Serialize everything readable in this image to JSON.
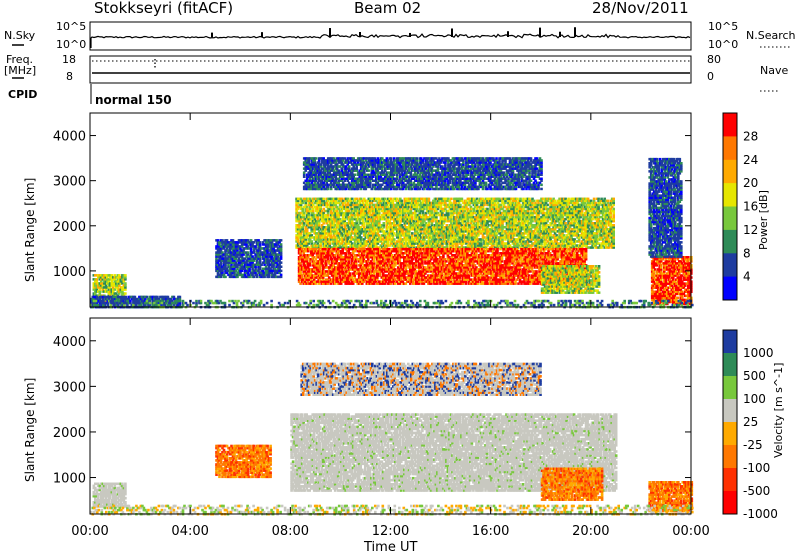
{
  "header": {
    "radar": "Stokkseyri (fitACF)",
    "beam": "Beam 02",
    "date": "28/Nov/2011"
  },
  "top_panel": {
    "nsky_label": "N.Sky",
    "nsky_ticks": [
      "10^5",
      "10^0"
    ],
    "nsky_right_ticks": [
      "10^5",
      "10^0"
    ],
    "nsearch_label": "N.Search",
    "freq_label_1": "Freq.",
    "freq_label_2": "[MHz]",
    "freq_ticks": [
      "18",
      "8"
    ],
    "nave_ticks": [
      "80",
      "0"
    ],
    "nave_label": "Nave",
    "cpid_label": "CPID",
    "cpid_value": "normal 150"
  },
  "chart_data": [
    {
      "type": "heatmap",
      "title": "",
      "quantity": "Power",
      "colorbar_label": "Power [dB]",
      "colorbar_ticks": [
        "28",
        "24",
        "20",
        "16",
        "12",
        "8",
        "4"
      ],
      "colorbar_colors": [
        "#ff0000",
        "#ff7800",
        "#ffaa00",
        "#e6e600",
        "#78c83c",
        "#2e8b57",
        "#1e3ca0",
        "#0000ff"
      ],
      "xlabel": "",
      "ylabel": "Slant Range [km]",
      "xlim": [
        0,
        24
      ],
      "ylim": [
        200,
        4500
      ],
      "yticks": [
        "4000",
        "3000",
        "2000",
        "1000"
      ],
      "ytick_values": [
        4000,
        3000,
        2000,
        1000
      ],
      "regions": [
        {
          "t0": 0.1,
          "t1": 1.4,
          "r0": 300,
          "r1": 900,
          "level": "mid"
        },
        {
          "t0": 0.0,
          "t1": 3.6,
          "r0": 180,
          "r1": 420,
          "level": "low"
        },
        {
          "t0": 5.0,
          "t1": 7.6,
          "r0": 850,
          "r1": 1700,
          "level": "low"
        },
        {
          "t0": 8.2,
          "t1": 20.9,
          "r0": 1500,
          "r1": 2600,
          "level": "mid"
        },
        {
          "t0": 8.3,
          "t1": 19.8,
          "r0": 700,
          "r1": 1500,
          "level": "high"
        },
        {
          "t0": 18.0,
          "t1": 20.3,
          "r0": 500,
          "r1": 1100,
          "level": "mid"
        },
        {
          "t0": 8.5,
          "t1": 18.0,
          "r0": 2800,
          "r1": 3500,
          "level": "low"
        },
        {
          "t0": 22.4,
          "t1": 24.0,
          "r0": 250,
          "r1": 1300,
          "level": "high"
        },
        {
          "t0": 22.3,
          "t1": 23.6,
          "r0": 1300,
          "r1": 3500,
          "level": "low"
        },
        {
          "t0": 0.0,
          "t1": 24.0,
          "r0": 180,
          "r1": 350,
          "level": "sparse"
        }
      ]
    },
    {
      "type": "heatmap",
      "title": "",
      "quantity": "Velocity",
      "colorbar_label": "Velocity [m s^-1]",
      "colorbar_ticks": [
        "1000",
        "500",
        "100",
        "25",
        "-25",
        "-100",
        "-500",
        "-1000"
      ],
      "colorbar_colors": [
        "#1e3ca0",
        "#2e8b57",
        "#78c83c",
        "#c8c8c0",
        "#ffaa00",
        "#ff7800",
        "#ff3000",
        "#ff0000"
      ],
      "xlabel": "Time UT",
      "ylabel": "Slant Range [km]",
      "xlim": [
        0,
        24
      ],
      "ylim": [
        200,
        4500
      ],
      "xticks": [
        "00:00",
        "04:00",
        "08:00",
        "12:00",
        "16:00",
        "20:00",
        "00:00"
      ],
      "xtick_values": [
        0,
        4,
        8,
        12,
        16,
        20,
        24
      ],
      "yticks": [
        "4000",
        "3000",
        "2000",
        "1000"
      ],
      "ytick_values": [
        4000,
        3000,
        2000,
        1000
      ],
      "regions": [
        {
          "t0": 0.1,
          "t1": 1.4,
          "r0": 350,
          "r1": 850,
          "level": "ground"
        },
        {
          "t0": 8.0,
          "t1": 21.0,
          "r0": 700,
          "r1": 2400,
          "level": "ground"
        },
        {
          "t0": 5.0,
          "t1": 7.2,
          "r0": 1000,
          "r1": 1700,
          "level": "neg"
        },
        {
          "t0": 18.0,
          "t1": 20.4,
          "r0": 500,
          "r1": 1200,
          "level": "neg"
        },
        {
          "t0": 22.3,
          "t1": 24.0,
          "r0": 250,
          "r1": 900,
          "level": "neg"
        },
        {
          "t0": 8.4,
          "t1": 18.0,
          "r0": 2800,
          "r1": 3500,
          "level": "mixed"
        },
        {
          "t0": 0.0,
          "t1": 24.0,
          "r0": 180,
          "r1": 400,
          "level": "sparse"
        }
      ]
    }
  ]
}
